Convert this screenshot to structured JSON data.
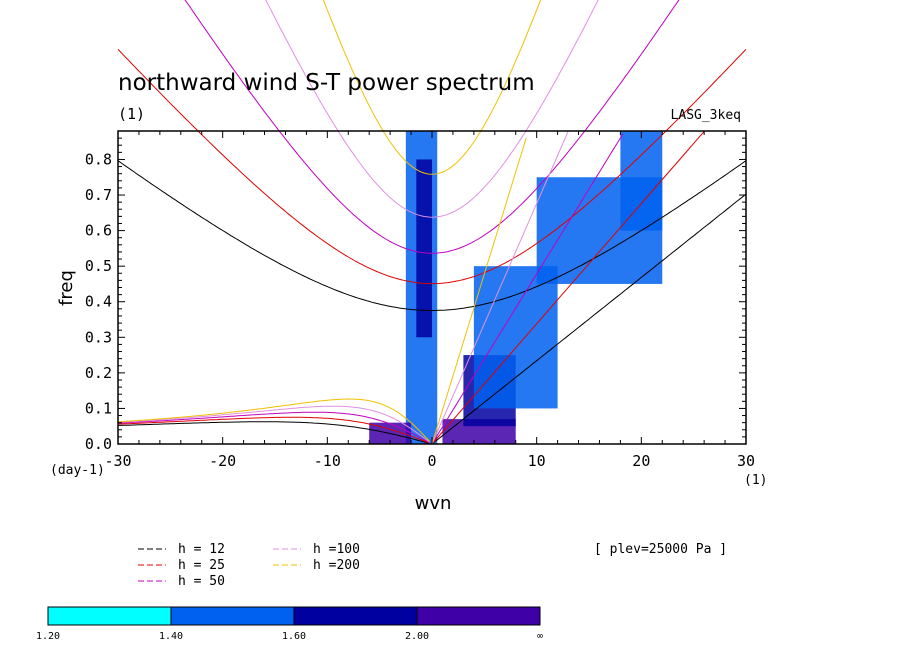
{
  "chart_data": {
    "type": "heatmap",
    "title": "northward wind S-T power spectrum",
    "units_label": "(1)",
    "model_label": "LASG_3keq",
    "xlabel": "wvn",
    "ylabel": "freq",
    "x_unit": "(1)",
    "y_unit": "(day-1)",
    "xlim": [
      -30,
      30
    ],
    "ylim": [
      0,
      0.88
    ],
    "x_ticks": [
      -30,
      -20,
      -10,
      0,
      10,
      20,
      30
    ],
    "x_tick_labels": [
      "-30",
      "-20",
      "-10",
      "0",
      "10",
      "20",
      "30"
    ],
    "y_ticks": [
      0,
      0.1,
      0.2,
      0.3,
      0.4,
      0.5,
      0.6,
      0.7,
      0.8
    ],
    "y_tick_labels": [
      "0.0",
      "0.1",
      "0.2",
      "0.3",
      "0.4",
      "0.5",
      "0.6",
      "0.7",
      "0.8"
    ],
    "dispersion_curves": [
      {
        "label": "h = 12",
        "h": 12,
        "color": "#000000"
      },
      {
        "label": "h = 25",
        "h": 25,
        "color": "#e00000"
      },
      {
        "label": "h = 50",
        "h": 50,
        "color": "#c000c0"
      },
      {
        "label": "h =100",
        "h": 100,
        "color": "#e090e0"
      },
      {
        "label": "h =200",
        "h": 200,
        "color": "#f0c000"
      }
    ],
    "level_note": "[ plev=25000 Pa ]",
    "colorbar": {
      "levels": [
        "1.20",
        "1.40",
        "1.60",
        "2.00",
        "∞"
      ],
      "colors": [
        "#00ffff",
        "#0060f0",
        "#0000a0",
        "#4000a8"
      ]
    },
    "regions": [
      {
        "x": [
          -2.5,
          0.5
        ],
        "y": [
          0.0,
          0.88
        ],
        "level": 1
      },
      {
        "x": [
          -1.5,
          0.0
        ],
        "y": [
          0.3,
          0.8
        ],
        "level": 2
      },
      {
        "x": [
          -6,
          -2
        ],
        "y": [
          0.0,
          0.06
        ],
        "level": 3
      },
      {
        "x": [
          1,
          8
        ],
        "y": [
          0.0,
          0.07
        ],
        "level": 3
      },
      {
        "x": [
          3,
          8
        ],
        "y": [
          0.05,
          0.25
        ],
        "level": 2
      },
      {
        "x": [
          4,
          12
        ],
        "y": [
          0.1,
          0.5
        ],
        "level": 1
      },
      {
        "x": [
          10,
          22
        ],
        "y": [
          0.45,
          0.75
        ],
        "level": 1
      },
      {
        "x": [
          18,
          22
        ],
        "y": [
          0.6,
          0.88
        ],
        "level": 1
      }
    ]
  }
}
